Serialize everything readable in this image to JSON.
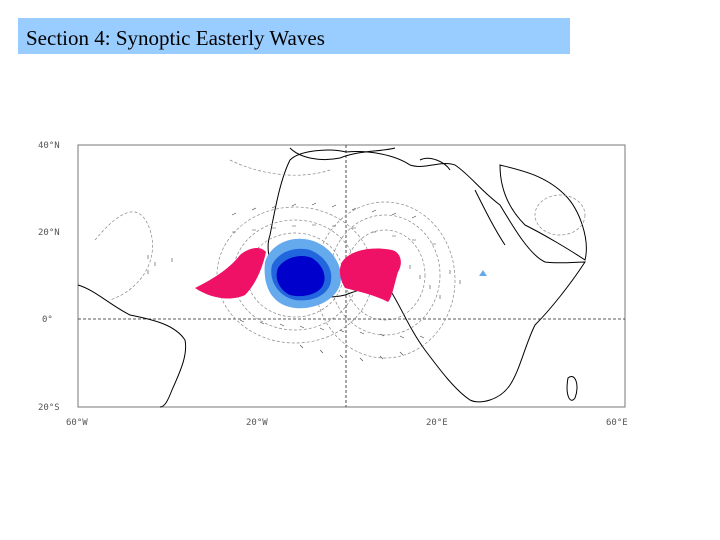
{
  "slide": {
    "title": "Section 4: Synoptic Easterly Waves"
  },
  "map": {
    "lat_labels": [
      "40°N",
      "20°N",
      "0°",
      "20°S"
    ],
    "lon_labels": [
      "60°W",
      "20°W",
      "20°E",
      "60°E"
    ],
    "colors": {
      "positive_anomaly": "#ee1166",
      "negative_anomaly_light": "#66aaee",
      "negative_anomaly_mid": "#2266dd",
      "negative_anomaly_dark": "#0000cc",
      "contour": "#888888",
      "coastline": "#000000"
    }
  }
}
